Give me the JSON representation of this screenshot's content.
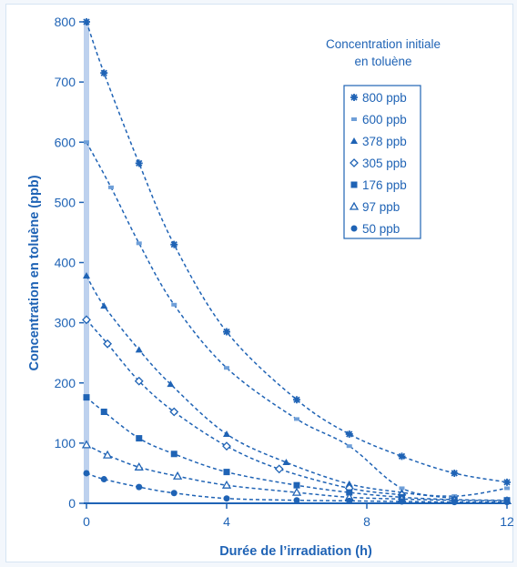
{
  "chart_data": {
    "type": "scatter",
    "xlabel": "Durée de l’irradiation (h)",
    "ylabel": "Concentration en toluène (ppb)",
    "xlim": [
      0,
      12
    ],
    "ylim": [
      0,
      800
    ],
    "x_ticks": [
      0,
      4,
      8,
      12
    ],
    "y_ticks": [
      0,
      100,
      200,
      300,
      400,
      500,
      600,
      700,
      800
    ],
    "legend_title": [
      "Concentration initiale",
      "en toluène"
    ],
    "legend_position": "top-right",
    "fit_lines": "dashed exponential decay curves",
    "series": [
      {
        "name": "800 ppb",
        "marker": "star",
        "points": [
          [
            0,
            800
          ],
          [
            0.5,
            715
          ],
          [
            1.5,
            565
          ],
          [
            2.5,
            430
          ],
          [
            4,
            285
          ],
          [
            6,
            172
          ],
          [
            7.5,
            115
          ],
          [
            9,
            78
          ],
          [
            10.5,
            50
          ],
          [
            12,
            35
          ]
        ]
      },
      {
        "name": "600 ppb",
        "marker": "square-small",
        "points": [
          [
            0,
            600
          ],
          [
            0.7,
            525
          ],
          [
            1.5,
            432
          ],
          [
            2.5,
            330
          ],
          [
            4,
            225
          ],
          [
            6,
            140
          ],
          [
            7.5,
            95
          ],
          [
            9,
            25
          ],
          [
            10.5,
            12
          ],
          [
            12,
            25
          ]
        ]
      },
      {
        "name": "378 ppb",
        "marker": "triangle",
        "points": [
          [
            0,
            378
          ],
          [
            0.5,
            328
          ],
          [
            1.5,
            255
          ],
          [
            2.4,
            198
          ],
          [
            4,
            115
          ],
          [
            5.7,
            68
          ],
          [
            7.5,
            32
          ],
          [
            9,
            18
          ],
          [
            10.5,
            8
          ]
        ]
      },
      {
        "name": "305 ppb",
        "marker": "diamond",
        "points": [
          [
            0,
            305
          ],
          [
            0.6,
            265
          ],
          [
            1.5,
            203
          ],
          [
            2.5,
            152
          ],
          [
            4,
            95
          ],
          [
            5.5,
            57
          ],
          [
            7.5,
            25
          ],
          [
            9,
            14
          ]
        ]
      },
      {
        "name": "176 ppb",
        "marker": "square",
        "points": [
          [
            0,
            176
          ],
          [
            0.5,
            152
          ],
          [
            1.5,
            108
          ],
          [
            2.5,
            82
          ],
          [
            4,
            52
          ],
          [
            6,
            30
          ],
          [
            7.5,
            18
          ],
          [
            9,
            10
          ],
          [
            10.5,
            6
          ],
          [
            12,
            5
          ]
        ]
      },
      {
        "name": "97 ppb",
        "marker": "triangle-open",
        "points": [
          [
            0,
            97
          ],
          [
            0.6,
            80
          ],
          [
            1.5,
            60
          ],
          [
            2.6,
            45
          ],
          [
            4,
            30
          ],
          [
            6,
            18
          ],
          [
            7.5,
            10
          ],
          [
            9,
            7
          ],
          [
            10.5,
            5
          ],
          [
            12,
            4
          ]
        ]
      },
      {
        "name": "50 ppb",
        "marker": "circle",
        "points": [
          [
            0,
            50
          ],
          [
            0.5,
            40
          ],
          [
            1.5,
            27
          ],
          [
            2.5,
            17
          ],
          [
            4,
            8
          ],
          [
            6,
            5
          ],
          [
            7.5,
            4
          ],
          [
            9,
            3
          ],
          [
            10.5,
            2
          ],
          [
            12,
            2
          ]
        ]
      }
    ]
  },
  "colors": {
    "accent": "#1f63b5",
    "axis_band": "#bdd1ee",
    "frame_background": "#f3f7fc"
  }
}
